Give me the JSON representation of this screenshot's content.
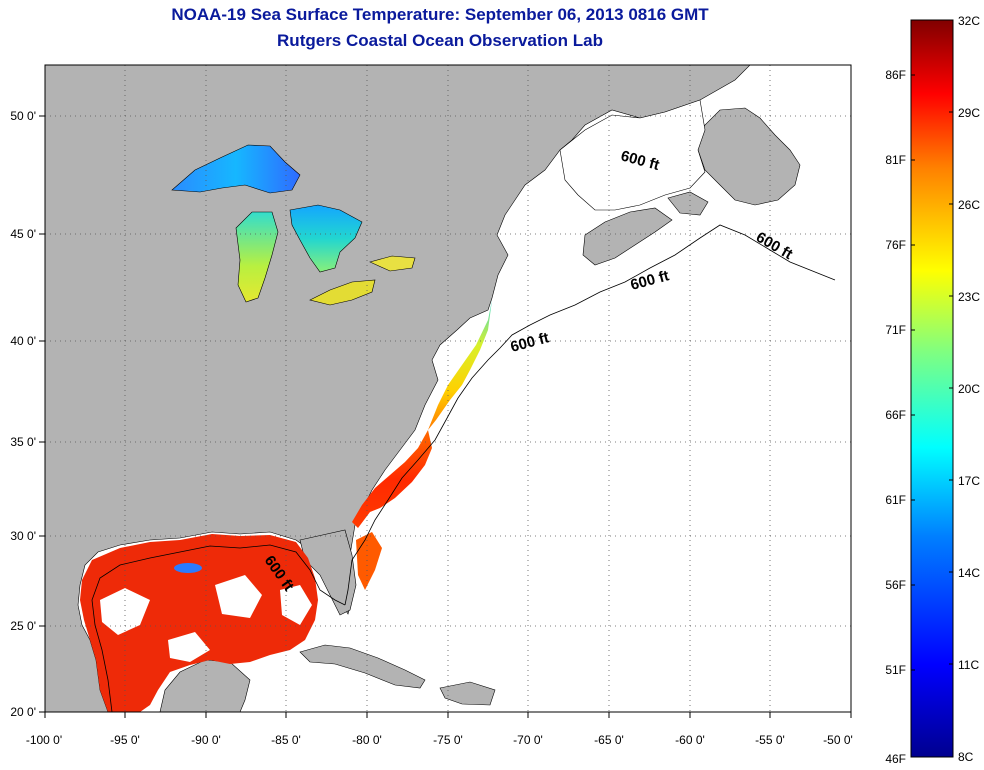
{
  "header": {
    "title": "NOAA-19 Sea Surface Temperature:  September 06, 2013 0816 GMT",
    "subtitle": "Rutgers Coastal Ocean Observation Lab"
  },
  "map": {
    "lon_range": [
      -100,
      -50
    ],
    "lat_range": [
      20,
      52.5
    ],
    "lon_ticks": [
      "-100 0'",
      "-95 0'",
      "-90 0'",
      "-85 0'",
      "-80 0'",
      "-75 0'",
      "-70 0'",
      "-65 0'",
      "-60 0'",
      "-55 0'",
      "-50 0'"
    ],
    "lat_ticks": [
      "50 0'",
      "45 0'",
      "40 0'",
      "35 0'",
      "30 0'",
      "25 0'",
      "20 0'"
    ],
    "grid": "dotted",
    "land_color": "#b3b3b3",
    "no_data_color": "#ffffff",
    "isobath_labels": [
      "600 ft",
      "600 ft",
      "600 ft",
      "600 ft",
      "600 ft"
    ]
  },
  "colorbar": {
    "celsius_labels": [
      "32C",
      "29C",
      "26C",
      "23C",
      "20C",
      "17C",
      "14C",
      "11C",
      "8C"
    ],
    "fahrenheit_labels": [
      "86F",
      "81F",
      "76F",
      "71F",
      "66F",
      "61F",
      "56F",
      "51F",
      "46F"
    ],
    "range_c": [
      8,
      32
    ],
    "colors": [
      "#00008f",
      "#0000ff",
      "#0080ff",
      "#00ffff",
      "#80ff80",
      "#ffff00",
      "#ff8000",
      "#ff0000",
      "#800000"
    ]
  }
}
